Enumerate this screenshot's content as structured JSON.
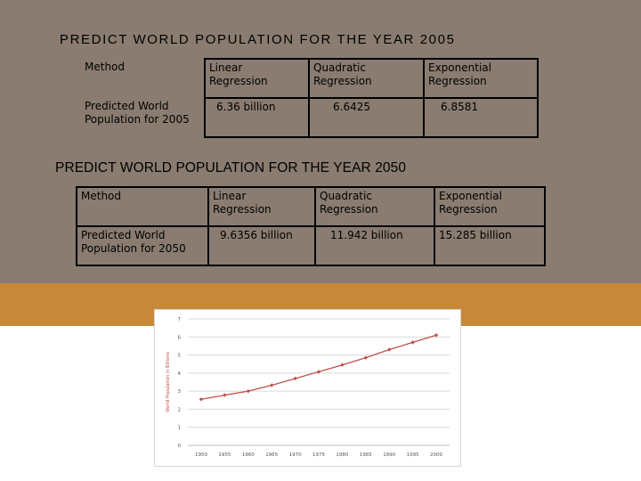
{
  "slide": {
    "title_2005": "PREDICT WORLD POPULATION FOR THE YEAR 2005",
    "title_2050": "PREDICT WORLD POPULATION FOR THE YEAR 2050",
    "colors": {
      "top_band": "#8a7c70",
      "accent_band": "#c8883a",
      "series": "#c0504d"
    }
  },
  "table_2005": {
    "headers": [
      "Method",
      "Linear Regression",
      "Quadratic Regression",
      "Exponential Regression"
    ],
    "row_label": "Predicted World Population for 2005",
    "values": [
      "6.36 billion",
      "6.6425",
      "6.8581"
    ]
  },
  "table_2050": {
    "headers": [
      "Method",
      "Linear Regression",
      "Quadratic Regression",
      "Exponential Regression"
    ],
    "row_label": "Predicted World Population for 2050",
    "values": [
      "9.6356 billion",
      "11.942 billion",
      "15.285 billion"
    ]
  },
  "chart_data": {
    "type": "line",
    "title": "",
    "xlabel": "",
    "ylabel": "World Population in Billions",
    "x": [
      1950,
      1955,
      1960,
      1965,
      1970,
      1975,
      1980,
      1985,
      1990,
      1995,
      2000
    ],
    "x_tick_labels": [
      "1950",
      "1955",
      "1960",
      "1965",
      "1970",
      "1975",
      "1980",
      "1985",
      "1990",
      "1995",
      "2000"
    ],
    "y_tick_labels": [
      "0",
      "1",
      "2",
      "3",
      "4",
      "5",
      "6",
      "7"
    ],
    "ylim": [
      0,
      7
    ],
    "grid": true,
    "series": [
      {
        "values": [
          2.55,
          2.78,
          3.0,
          3.33,
          3.7,
          4.07,
          4.45,
          4.85,
          5.3,
          5.7,
          6.1
        ]
      }
    ]
  }
}
